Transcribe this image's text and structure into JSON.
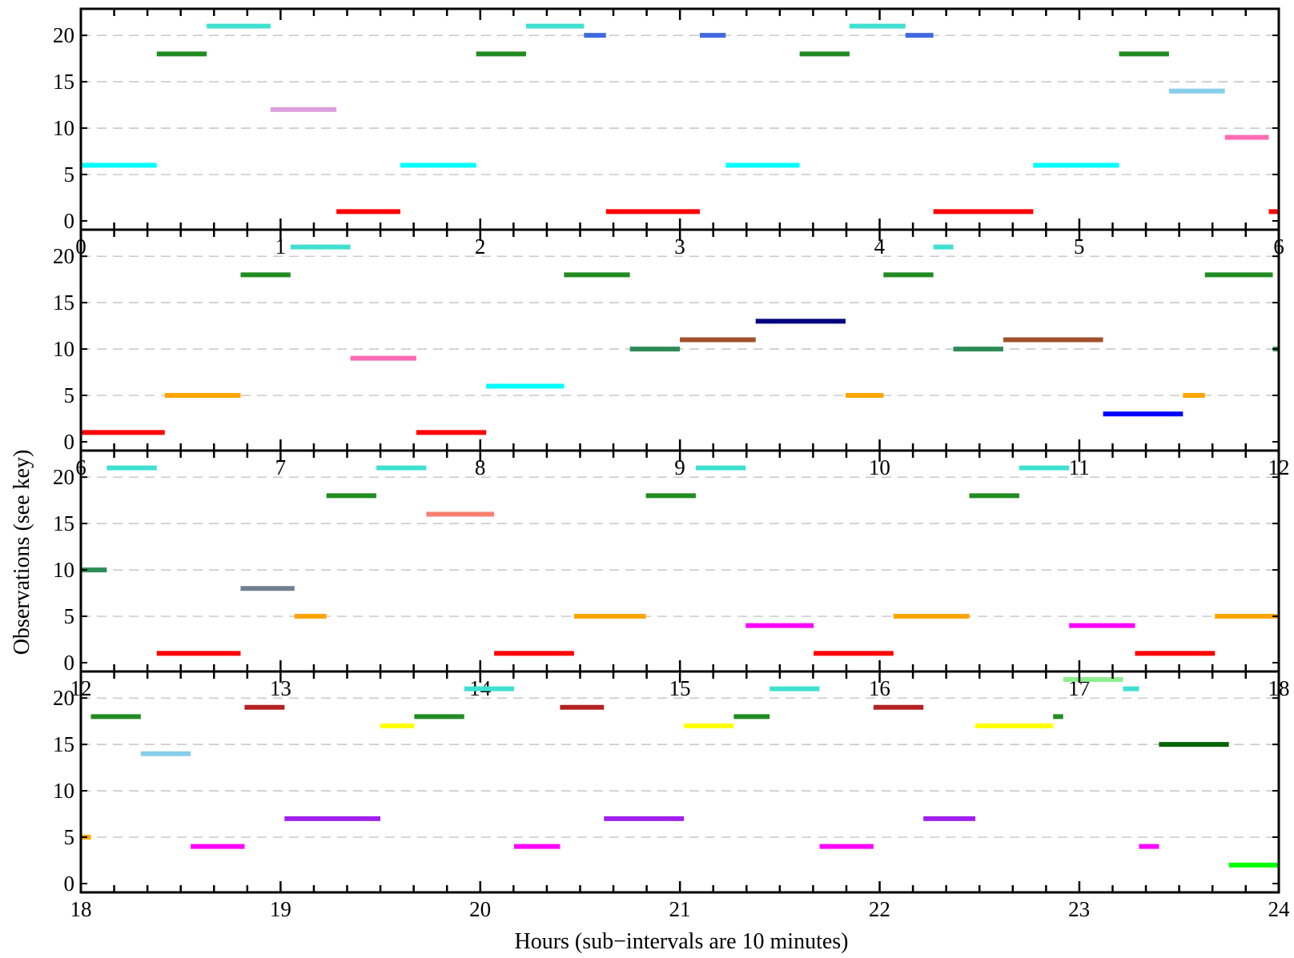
{
  "chart_data": {
    "type": "timeline",
    "title": "",
    "xlabel": "Hours (sub−intervals are 10 minutes)",
    "ylabel": "Observations (see key)",
    "ylim": [
      0,
      22
    ],
    "yticks": [
      0,
      5,
      10,
      15,
      20
    ],
    "grid": "dashed horizontal at y-ticks",
    "minor_tick_interval_hours": 0.1667,
    "panels": [
      {
        "name": "panel-0-6",
        "xlim": [
          0,
          6
        ],
        "xticks": [
          0,
          1,
          2,
          3,
          4,
          5,
          6
        ],
        "segments": [
          {
            "y": 6,
            "x0": 0.0,
            "x1": 0.38,
            "color": "#00ffff"
          },
          {
            "y": 18,
            "x0": 0.38,
            "x1": 0.63,
            "color": "#228b22"
          },
          {
            "y": 21,
            "x0": 0.63,
            "x1": 0.95,
            "color": "#40e0d0"
          },
          {
            "y": 12,
            "x0": 0.95,
            "x1": 1.28,
            "color": "#dda0dd"
          },
          {
            "y": 1,
            "x0": 1.28,
            "x1": 1.6,
            "color": "#ff0000"
          },
          {
            "y": 6,
            "x0": 1.6,
            "x1": 1.98,
            "color": "#00ffff"
          },
          {
            "y": 18,
            "x0": 1.98,
            "x1": 2.23,
            "color": "#228b22"
          },
          {
            "y": 21,
            "x0": 2.23,
            "x1": 2.52,
            "color": "#40e0d0"
          },
          {
            "y": 20,
            "x0": 2.52,
            "x1": 2.63,
            "color": "#4169e1"
          },
          {
            "y": 1,
            "x0": 2.63,
            "x1": 3.1,
            "color": "#ff0000"
          },
          {
            "y": 20,
            "x0": 3.1,
            "x1": 3.23,
            "color": "#4169e1"
          },
          {
            "y": 6,
            "x0": 3.23,
            "x1": 3.6,
            "color": "#00ffff"
          },
          {
            "y": 18,
            "x0": 3.6,
            "x1": 3.85,
            "color": "#228b22"
          },
          {
            "y": 21,
            "x0": 3.85,
            "x1": 4.13,
            "color": "#40e0d0"
          },
          {
            "y": 20,
            "x0": 4.13,
            "x1": 4.27,
            "color": "#4169e1"
          },
          {
            "y": 1,
            "x0": 4.27,
            "x1": 4.77,
            "color": "#ff0000"
          },
          {
            "y": 6,
            "x0": 4.77,
            "x1": 5.2,
            "color": "#00ffff"
          },
          {
            "y": 18,
            "x0": 5.2,
            "x1": 5.45,
            "color": "#228b22"
          },
          {
            "y": 14,
            "x0": 5.45,
            "x1": 5.73,
            "color": "#87ceeb"
          },
          {
            "y": 9,
            "x0": 5.73,
            "x1": 5.95,
            "color": "#ff69b4"
          },
          {
            "y": 1,
            "x0": 5.95,
            "x1": 6.0,
            "color": "#ff0000"
          }
        ]
      },
      {
        "name": "panel-6-12",
        "xlim": [
          6,
          12
        ],
        "xticks": [
          6,
          7,
          8,
          9,
          10,
          11,
          12
        ],
        "segments": [
          {
            "y": 1,
            "x0": 6.0,
            "x1": 6.42,
            "color": "#ff0000"
          },
          {
            "y": 5,
            "x0": 6.42,
            "x1": 6.8,
            "color": "#ffa500"
          },
          {
            "y": 18,
            "x0": 6.8,
            "x1": 7.05,
            "color": "#228b22"
          },
          {
            "y": 21,
            "x0": 7.05,
            "x1": 7.35,
            "color": "#40e0d0"
          },
          {
            "y": 9,
            "x0": 7.35,
            "x1": 7.68,
            "color": "#ff69b4"
          },
          {
            "y": 1,
            "x0": 7.68,
            "x1": 8.03,
            "color": "#ff0000"
          },
          {
            "y": 6,
            "x0": 8.03,
            "x1": 8.42,
            "color": "#00ffff"
          },
          {
            "y": 18,
            "x0": 8.42,
            "x1": 8.75,
            "color": "#228b22"
          },
          {
            "y": 10,
            "x0": 8.75,
            "x1": 9.0,
            "color": "#2e8b57"
          },
          {
            "y": 11,
            "x0": 9.0,
            "x1": 9.38,
            "color": "#a0522d"
          },
          {
            "y": 13,
            "x0": 9.38,
            "x1": 9.83,
            "color": "#000080"
          },
          {
            "y": 5,
            "x0": 9.83,
            "x1": 10.02,
            "color": "#ffa500"
          },
          {
            "y": 18,
            "x0": 10.02,
            "x1": 10.27,
            "color": "#228b22"
          },
          {
            "y": 21,
            "x0": 10.27,
            "x1": 10.37,
            "color": "#40e0d0"
          },
          {
            "y": 10,
            "x0": 10.37,
            "x1": 10.62,
            "color": "#2e8b57"
          },
          {
            "y": 11,
            "x0": 10.62,
            "x1": 11.12,
            "color": "#a0522d"
          },
          {
            "y": 3,
            "x0": 11.12,
            "x1": 11.52,
            "color": "#0000ff"
          },
          {
            "y": 5,
            "x0": 11.52,
            "x1": 11.63,
            "color": "#ffa500"
          },
          {
            "y": 18,
            "x0": 11.63,
            "x1": 11.97,
            "color": "#228b22"
          },
          {
            "y": 10,
            "x0": 11.97,
            "x1": 12.0,
            "color": "#2e8b57"
          }
        ]
      },
      {
        "name": "panel-12-18",
        "xlim": [
          12,
          18
        ],
        "xticks": [
          12,
          13,
          14,
          15,
          16,
          17,
          18
        ],
        "segments": [
          {
            "y": 10,
            "x0": 12.0,
            "x1": 12.13,
            "color": "#2e8b57"
          },
          {
            "y": 21,
            "x0": 12.13,
            "x1": 12.38,
            "color": "#40e0d0"
          },
          {
            "y": 1,
            "x0": 12.38,
            "x1": 12.8,
            "color": "#ff0000"
          },
          {
            "y": 8,
            "x0": 12.8,
            "x1": 13.07,
            "color": "#708090"
          },
          {
            "y": 5,
            "x0": 13.07,
            "x1": 13.23,
            "color": "#ffa500"
          },
          {
            "y": 18,
            "x0": 13.23,
            "x1": 13.48,
            "color": "#228b22"
          },
          {
            "y": 21,
            "x0": 13.48,
            "x1": 13.73,
            "color": "#40e0d0"
          },
          {
            "y": 16,
            "x0": 13.73,
            "x1": 14.07,
            "color": "#fa8072"
          },
          {
            "y": 1,
            "x0": 14.07,
            "x1": 14.47,
            "color": "#ff0000"
          },
          {
            "y": 5,
            "x0": 14.47,
            "x1": 14.83,
            "color": "#ffa500"
          },
          {
            "y": 18,
            "x0": 14.83,
            "x1": 15.08,
            "color": "#228b22"
          },
          {
            "y": 21,
            "x0": 15.08,
            "x1": 15.33,
            "color": "#40e0d0"
          },
          {
            "y": 4,
            "x0": 15.33,
            "x1": 15.67,
            "color": "#ff00ff"
          },
          {
            "y": 1,
            "x0": 15.67,
            "x1": 16.07,
            "color": "#ff0000"
          },
          {
            "y": 5,
            "x0": 16.07,
            "x1": 16.45,
            "color": "#ffa500"
          },
          {
            "y": 18,
            "x0": 16.45,
            "x1": 16.7,
            "color": "#228b22"
          },
          {
            "y": 21,
            "x0": 16.7,
            "x1": 16.95,
            "color": "#40e0d0"
          },
          {
            "y": 4,
            "x0": 16.95,
            "x1": 17.28,
            "color": "#ff00ff"
          },
          {
            "y": 1,
            "x0": 17.28,
            "x1": 17.68,
            "color": "#ff0000"
          },
          {
            "y": 5,
            "x0": 17.68,
            "x1": 18.0,
            "color": "#ffa500"
          }
        ]
      },
      {
        "name": "panel-18-24",
        "xlim": [
          18,
          24
        ],
        "xticks": [
          18,
          19,
          20,
          21,
          22,
          23,
          24
        ],
        "segments": [
          {
            "y": 5,
            "x0": 18.0,
            "x1": 18.05,
            "color": "#ffa500"
          },
          {
            "y": 18,
            "x0": 18.05,
            "x1": 18.3,
            "color": "#228b22"
          },
          {
            "y": 14,
            "x0": 18.3,
            "x1": 18.55,
            "color": "#87ceeb"
          },
          {
            "y": 4,
            "x0": 18.55,
            "x1": 18.82,
            "color": "#ff00ff"
          },
          {
            "y": 19,
            "x0": 18.82,
            "x1": 19.02,
            "color": "#b22222"
          },
          {
            "y": 7,
            "x0": 19.02,
            "x1": 19.5,
            "color": "#a020f0"
          },
          {
            "y": 17,
            "x0": 19.5,
            "x1": 19.67,
            "color": "#ffff00"
          },
          {
            "y": 18,
            "x0": 19.67,
            "x1": 19.92,
            "color": "#228b22"
          },
          {
            "y": 21,
            "x0": 19.92,
            "x1": 20.17,
            "color": "#40e0d0"
          },
          {
            "y": 4,
            "x0": 20.17,
            "x1": 20.4,
            "color": "#ff00ff"
          },
          {
            "y": 19,
            "x0": 20.4,
            "x1": 20.62,
            "color": "#b22222"
          },
          {
            "y": 7,
            "x0": 20.62,
            "x1": 21.02,
            "color": "#a020f0"
          },
          {
            "y": 17,
            "x0": 21.02,
            "x1": 21.27,
            "color": "#ffff00"
          },
          {
            "y": 18,
            "x0": 21.27,
            "x1": 21.45,
            "color": "#228b22"
          },
          {
            "y": 21,
            "x0": 21.45,
            "x1": 21.7,
            "color": "#40e0d0"
          },
          {
            "y": 4,
            "x0": 21.7,
            "x1": 21.97,
            "color": "#ff00ff"
          },
          {
            "y": 19,
            "x0": 21.97,
            "x1": 22.22,
            "color": "#b22222"
          },
          {
            "y": 7,
            "x0": 22.22,
            "x1": 22.48,
            "color": "#a020f0"
          },
          {
            "y": 17,
            "x0": 22.48,
            "x1": 22.87,
            "color": "#ffff00"
          },
          {
            "y": 18,
            "x0": 22.87,
            "x1": 22.92,
            "color": "#228b22"
          },
          {
            "y": 22,
            "x0": 22.92,
            "x1": 23.22,
            "color": "#90ee90"
          },
          {
            "y": 21,
            "x0": 23.22,
            "x1": 23.3,
            "color": "#40e0d0"
          },
          {
            "y": 4,
            "x0": 23.3,
            "x1": 23.4,
            "color": "#ff00ff"
          },
          {
            "y": 15,
            "x0": 23.4,
            "x1": 23.75,
            "color": "#006400"
          },
          {
            "y": 2,
            "x0": 23.75,
            "x1": 24.0,
            "color": "#00ff00"
          }
        ]
      }
    ]
  }
}
